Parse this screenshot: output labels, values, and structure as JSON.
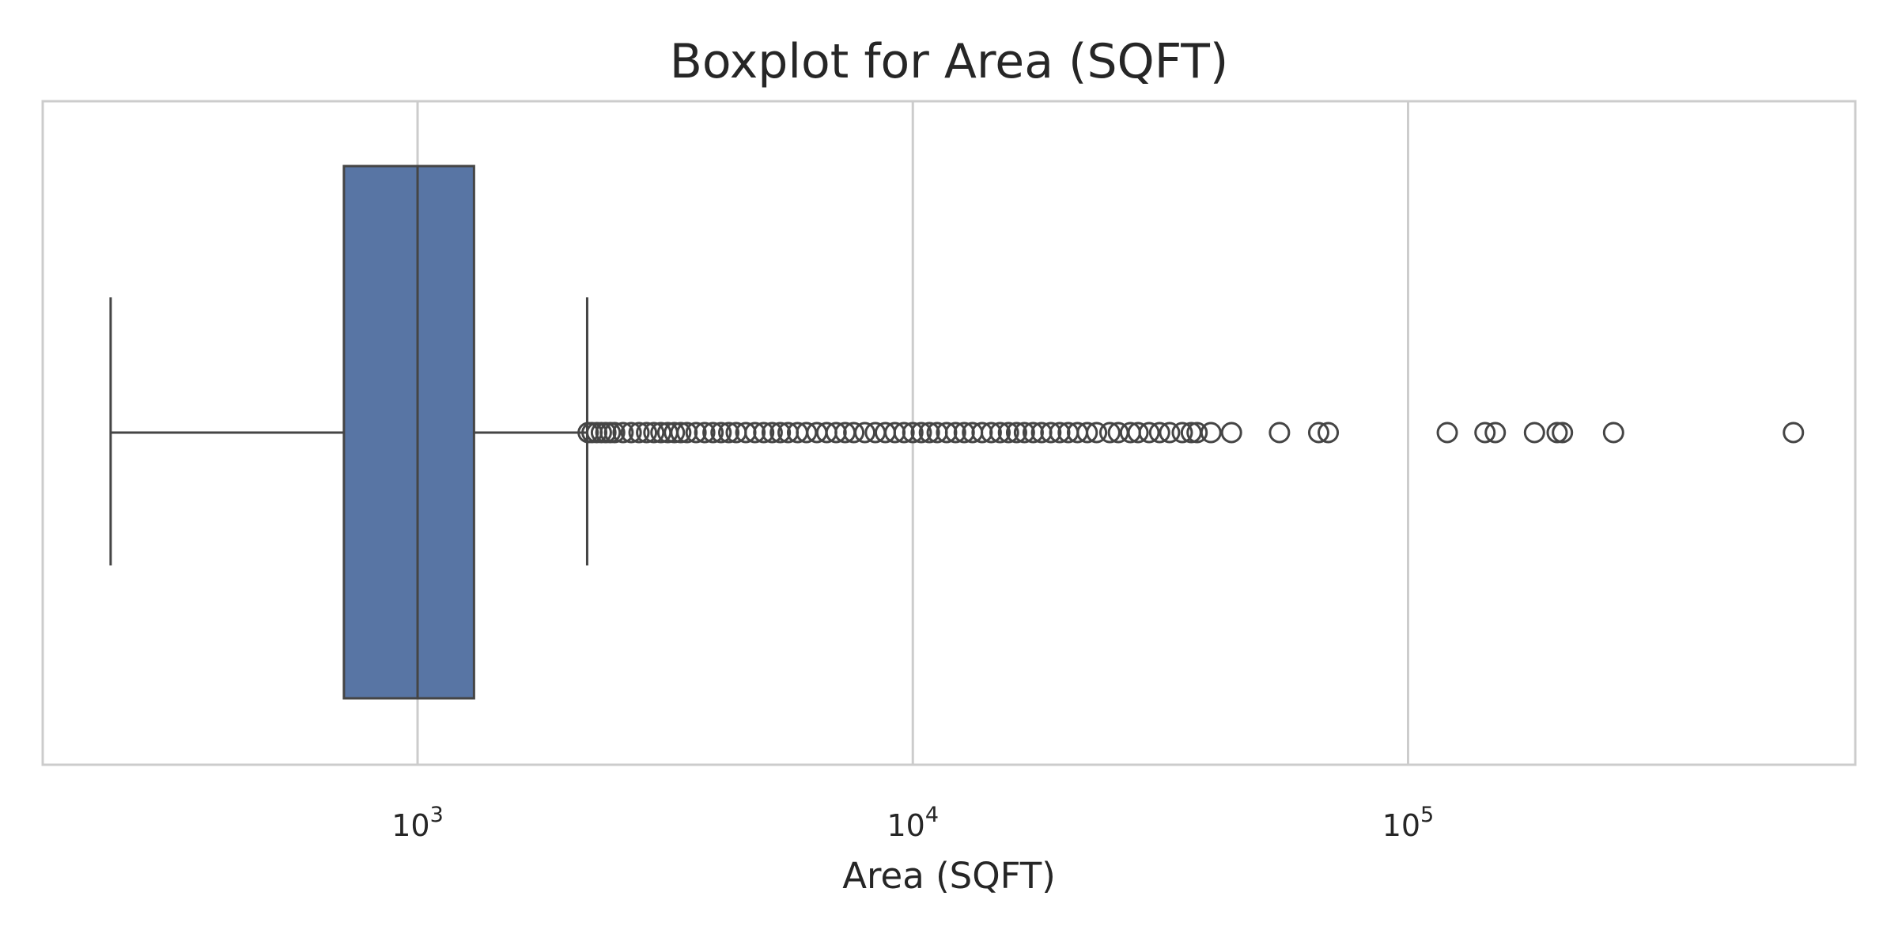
{
  "chart_data": {
    "type": "box",
    "title": "Boxplot for Area (SQFT)",
    "xlabel": "Area (SQFT)",
    "ylabel": "",
    "x_scale": "log",
    "xlim": [
      175,
      800000
    ],
    "grid": true,
    "x_ticks": [
      {
        "value": 1000,
        "base": "10",
        "exp": "3"
      },
      {
        "value": 10000,
        "base": "10",
        "exp": "4"
      },
      {
        "value": 100000,
        "base": "10",
        "exp": "5"
      }
    ],
    "box": {
      "whisker_low": 240,
      "q1": 710,
      "median": 1000,
      "q3": 1300,
      "whisker_high": 2200,
      "color": "#5875a4",
      "edge_color": "#454545"
    },
    "outliers": [
      2210,
      2250,
      2300,
      2350,
      2400,
      2450,
      2500,
      2600,
      2700,
      2800,
      2900,
      3000,
      3100,
      3200,
      3300,
      3400,
      3500,
      3650,
      3800,
      3950,
      4100,
      4250,
      4400,
      4600,
      4800,
      5000,
      5200,
      5400,
      5600,
      5850,
      6100,
      6400,
      6700,
      7000,
      7300,
      7600,
      8000,
      8400,
      8800,
      9200,
      9600,
      10000,
      10400,
      10800,
      11200,
      11700,
      12200,
      12700,
      13200,
      13800,
      14400,
      15000,
      15600,
      16200,
      16800,
      17500,
      18200,
      19000,
      19800,
      20600,
      21500,
      22500,
      23500,
      25000,
      26000,
      27500,
      28500,
      30000,
      31500,
      33000,
      35000,
      36500,
      37500,
      40000,
      44000,
      55000,
      66000,
      69000,
      120000,
      143000,
      150000,
      180000,
      200000,
      205000,
      260000,
      600000
    ]
  }
}
